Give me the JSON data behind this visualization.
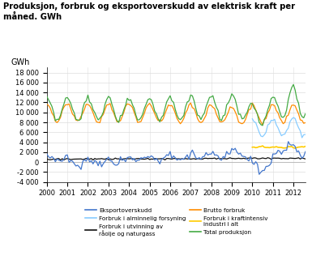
{
  "title": "Produksjon, forbruk og eksportoverskudd av elektrisk kraft per\nmåned. GWh",
  "ylabel": "GWh",
  "ylim": [
    -4000,
    19000
  ],
  "yticks": [
    -4000,
    -2000,
    0,
    2000,
    4000,
    6000,
    8000,
    10000,
    12000,
    14000,
    16000,
    18000
  ],
  "xlim": [
    2000,
    2012.6
  ],
  "colors": {
    "eksportoverskudd": "#4477CC",
    "forbruk_olje": "#111111",
    "kraftintensiv": "#FFCC00",
    "alminnelig": "#88CCFF",
    "brutto": "#FF8C00",
    "total": "#44AA44"
  },
  "legend_col1": [
    {
      "label": "Eksportoverskudd",
      "color": "#4477CC"
    },
    {
      "label": "Forbruk i utvinning av\nråolje og naturgass",
      "color": "#111111"
    },
    {
      "label": "Forbruk i kraftintensiv\nindustri i alt",
      "color": "#FFCC00"
    }
  ],
  "legend_col2": [
    {
      "label": "Forbruk i alminnelig forsyning",
      "color": "#88CCFF"
    },
    {
      "label": "Brutto forbruk",
      "color": "#FF8C00"
    },
    {
      "label": "Total produksjon",
      "color": "#44AA44"
    }
  ]
}
